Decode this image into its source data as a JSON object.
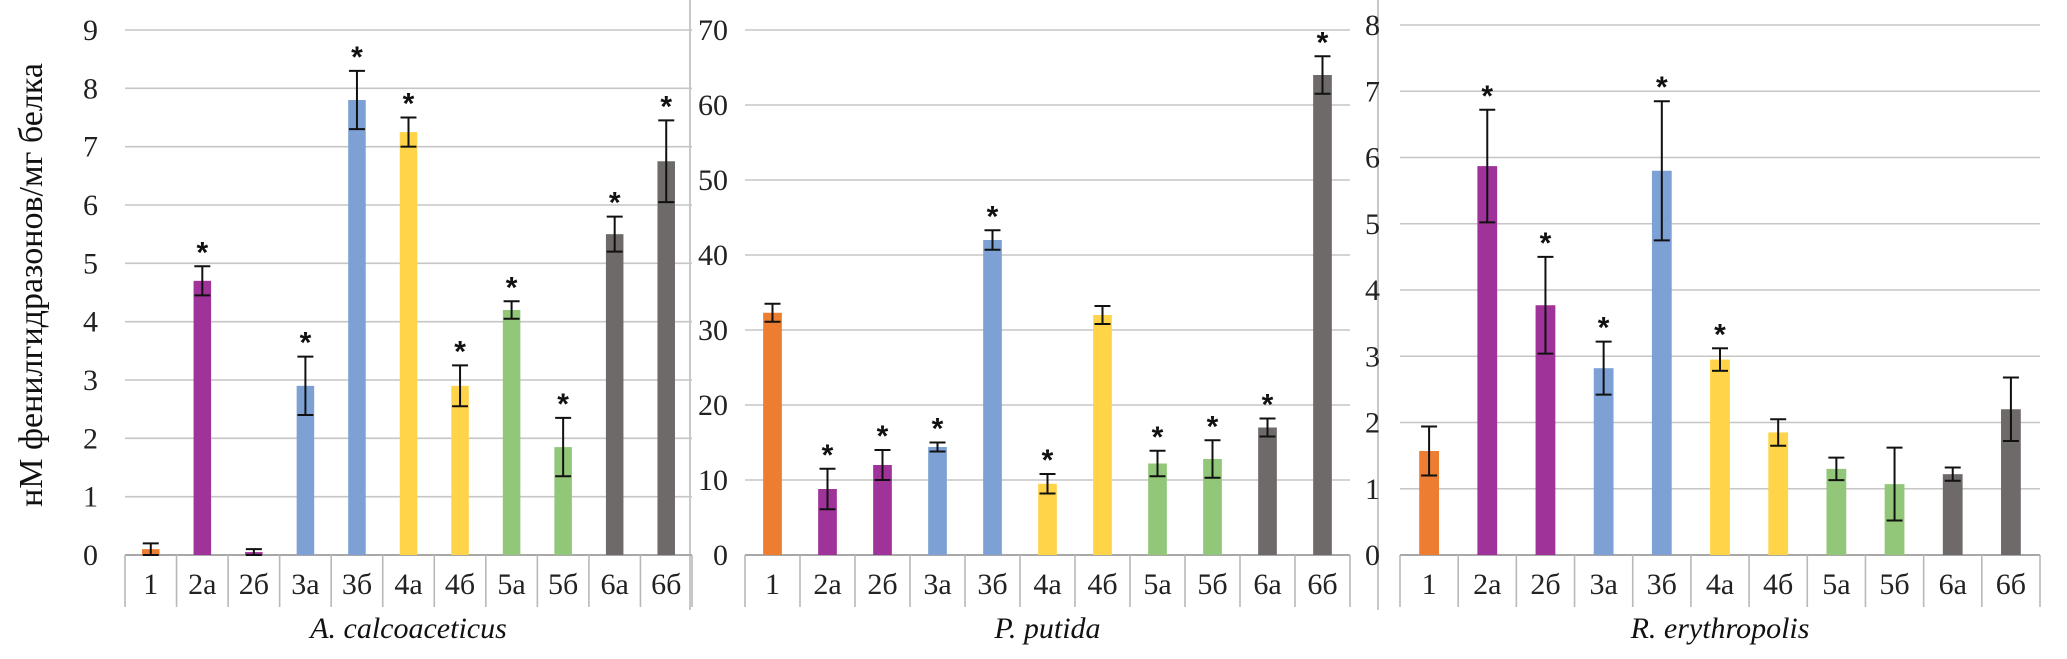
{
  "ylabel": "нМ фенилгидразонов/мг белка",
  "colors": {
    "orange": "#ED7D31",
    "purple": "#A0339A",
    "blue": "#7EA1D5",
    "yellow": "#FFD449",
    "green": "#92C77A",
    "gray": "#6F6A6A"
  },
  "chart_data": [
    {
      "type": "bar",
      "xlabel": "A. calcoaceticus",
      "ylim": [
        0,
        9
      ],
      "yticks": [
        0,
        1,
        2,
        3,
        4,
        5,
        6,
        7,
        8,
        9
      ],
      "categories": [
        "1",
        "2а",
        "2б",
        "3а",
        "3б",
        "4а",
        "4б",
        "5а",
        "5б",
        "6а",
        "6б"
      ],
      "values": [
        0.1,
        4.7,
        0.05,
        2.9,
        7.8,
        7.25,
        2.9,
        4.2,
        1.85,
        5.5,
        6.75
      ],
      "errors": [
        0.1,
        0.25,
        0.05,
        0.5,
        0.5,
        0.25,
        0.35,
        0.15,
        0.5,
        0.3,
        0.7
      ],
      "significant": [
        false,
        true,
        false,
        true,
        true,
        true,
        true,
        true,
        true,
        true,
        true
      ],
      "bar_colors": [
        "orange",
        "purple",
        "purple",
        "blue",
        "blue",
        "yellow",
        "yellow",
        "green",
        "green",
        "gray",
        "gray"
      ]
    },
    {
      "type": "bar",
      "xlabel": "P. putida",
      "ylim": [
        0,
        70
      ],
      "yticks": [
        0,
        10,
        20,
        30,
        40,
        50,
        60,
        70
      ],
      "categories": [
        "1",
        "2а",
        "2б",
        "3а",
        "3б",
        "4а",
        "4б",
        "5а",
        "5б",
        "6а",
        "6б"
      ],
      "values": [
        32.3,
        8.8,
        12,
        14.4,
        42,
        9.5,
        32,
        12.2,
        12.8,
        17,
        64
      ],
      "errors": [
        1.2,
        2.7,
        2,
        0.6,
        1.3,
        1.3,
        1.2,
        1.7,
        2.5,
        1.2,
        2.5
      ],
      "significant": [
        false,
        true,
        true,
        true,
        true,
        true,
        false,
        true,
        true,
        true,
        true
      ],
      "bar_colors": [
        "orange",
        "purple",
        "purple",
        "blue",
        "blue",
        "yellow",
        "yellow",
        "green",
        "green",
        "gray",
        "gray"
      ]
    },
    {
      "type": "bar",
      "xlabel": "R. erythropolis",
      "ylim": [
        0,
        8
      ],
      "yticks": [
        0,
        1,
        2,
        3,
        4,
        5,
        6,
        7,
        8
      ],
      "categories": [
        "1",
        "2а",
        "2б",
        "3а",
        "3б",
        "4а",
        "4б",
        "5а",
        "5б",
        "6а",
        "6б"
      ],
      "values": [
        1.57,
        5.87,
        3.77,
        2.82,
        5.8,
        2.95,
        1.85,
        1.3,
        1.07,
        1.22,
        2.2
      ],
      "errors": [
        0.37,
        0.85,
        0.73,
        0.4,
        1.05,
        0.17,
        0.2,
        0.17,
        0.55,
        0.1,
        0.48
      ],
      "significant": [
        false,
        true,
        true,
        true,
        true,
        true,
        false,
        false,
        false,
        false,
        false
      ],
      "bar_colors": [
        "orange",
        "purple",
        "purple",
        "blue",
        "blue",
        "yellow",
        "yellow",
        "green",
        "green",
        "gray",
        "gray"
      ]
    }
  ]
}
